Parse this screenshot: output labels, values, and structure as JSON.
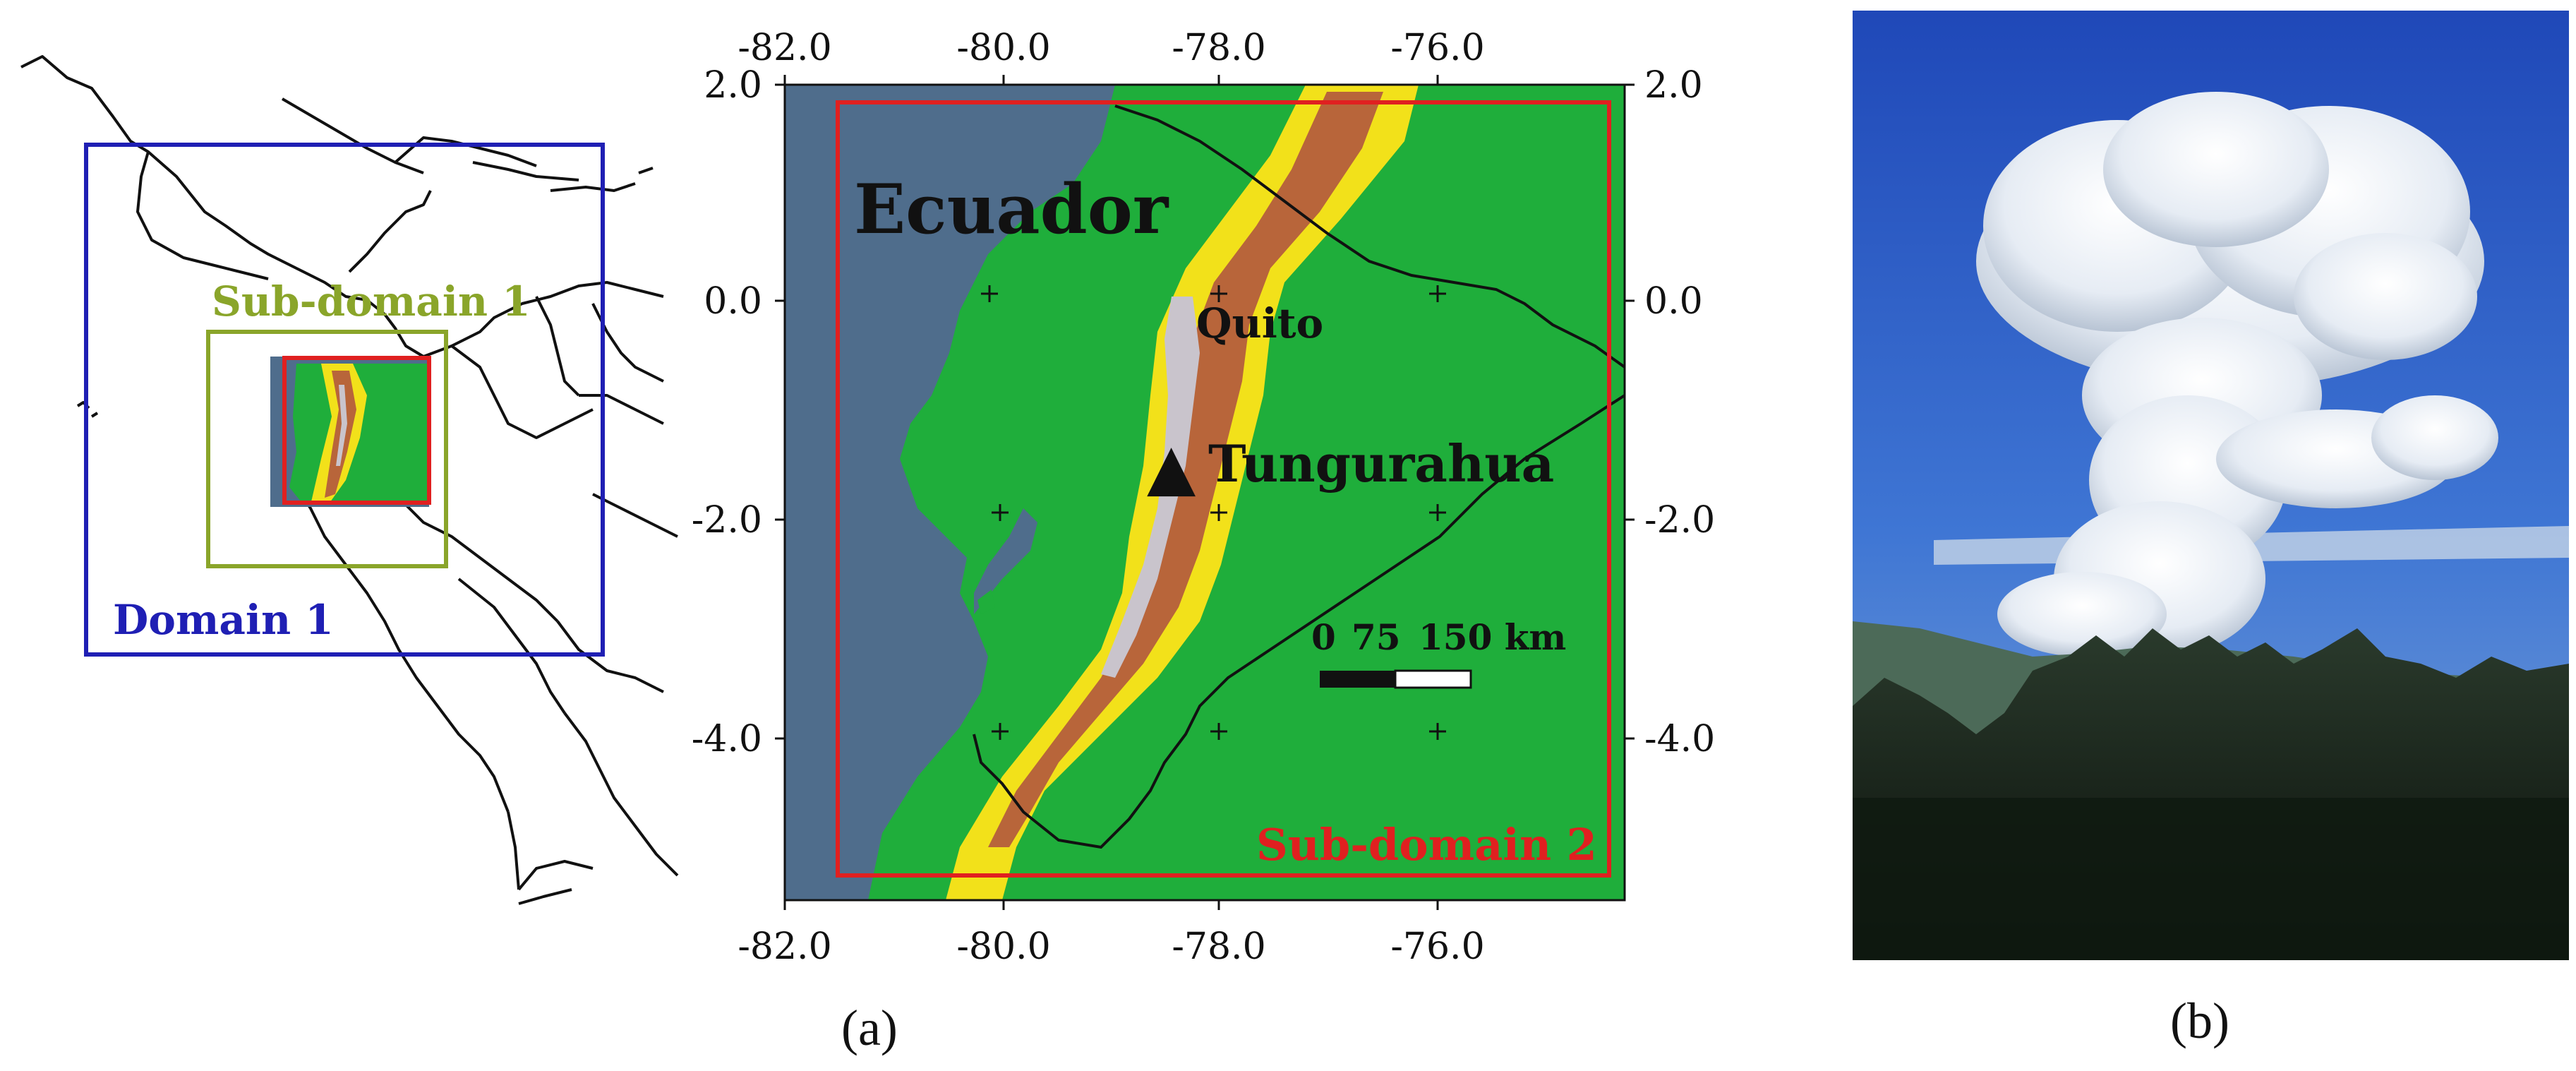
{
  "overview_map": {
    "domain1_label": "Domain 1",
    "subdomain1_label": "Sub-domain 1",
    "colors": {
      "domain1": "#1f1fb4",
      "subdomain1": "#8aa52a",
      "subdomain2": "#e02020",
      "coast": "#111111"
    }
  },
  "detail_map": {
    "country_label": "Ecuador",
    "city_label": "Quito",
    "volcano_label": "Tungurahua",
    "volcano_symbol": "▲",
    "subdomain2_label": "Sub-domain 2",
    "scale_bar": {
      "ticks": [
        "0",
        "75",
        "150 km"
      ]
    },
    "lon_ticks": [
      "-82.0",
      "-80.0",
      "-78.0",
      "-76.0"
    ],
    "lat_ticks_left": [
      "2.0",
      "0.0",
      "-2.0",
      "-4.0"
    ],
    "lat_ticks_right": [
      "2.0",
      "0.0",
      "-2.0",
      "-4.0"
    ],
    "colors": {
      "ocean": "#4f6d8c",
      "lowland": "#1fae3b",
      "mid": "#f2e11a",
      "high": "#b8653a",
      "peak": "#c9c4cc"
    }
  },
  "photo": {
    "subject": "eruption column photograph"
  },
  "panel_labels": {
    "a": "(a)",
    "b": "(b)"
  }
}
